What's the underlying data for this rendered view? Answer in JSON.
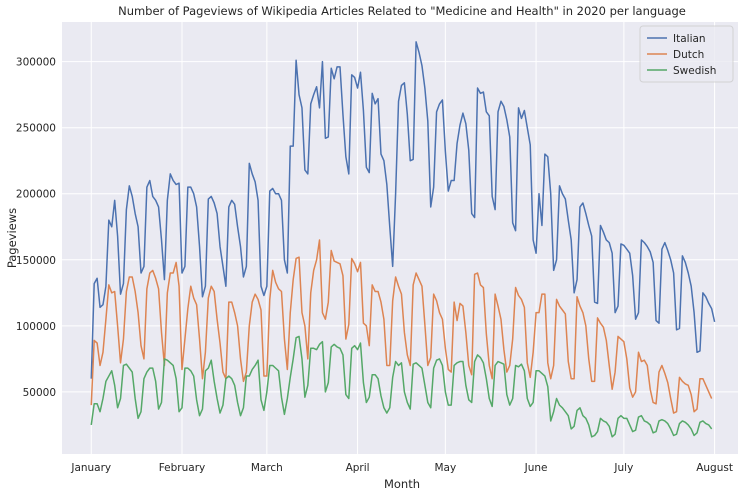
{
  "chart_data": {
    "type": "line",
    "title": "Number of Pageviews of Wikipedia Articles Related to \"Medicine and Health\" in 2020 per language",
    "xlabel": "Month",
    "ylabel": "Pageviews",
    "x_start": "2020-01-01",
    "x_end": "2020-07-31",
    "xlim": [
      "2019-12-22",
      "2020-08-09"
    ],
    "ylim": [
      3000,
      330000
    ],
    "x_ticks": [
      {
        "date": "2020-01-01",
        "label": "January"
      },
      {
        "date": "2020-02-01",
        "label": "February"
      },
      {
        "date": "2020-03-01",
        "label": "March"
      },
      {
        "date": "2020-04-01",
        "label": "April"
      },
      {
        "date": "2020-05-01",
        "label": "May"
      },
      {
        "date": "2020-06-01",
        "label": "June"
      },
      {
        "date": "2020-07-01",
        "label": "July"
      },
      {
        "date": "2020-08-01",
        "label": "August"
      }
    ],
    "y_ticks": [
      {
        "value": 50000,
        "label": "50000"
      },
      {
        "value": 100000,
        "label": "100000"
      },
      {
        "value": 150000,
        "label": "150000"
      },
      {
        "value": 200000,
        "label": "200000"
      },
      {
        "value": 250000,
        "label": "250000"
      },
      {
        "value": 300000,
        "label": "300000"
      }
    ],
    "grid": true,
    "legend_position": "top-right",
    "background_color": "#eaeaf2",
    "grid_color": "#ffffff",
    "series": [
      {
        "name": "Italian",
        "color": "#4c72b0",
        "values": [
          60000,
          132000,
          136000,
          114000,
          116000,
          130000,
          180000,
          175000,
          195000,
          168000,
          124000,
          132000,
          188000,
          206000,
          198000,
          185000,
          175000,
          140000,
          145000,
          205000,
          210000,
          198000,
          195000,
          190000,
          165000,
          135000,
          195000,
          215000,
          210000,
          207000,
          208000,
          140000,
          145000,
          205000,
          205000,
          200000,
          190000,
          160000,
          122000,
          130000,
          196000,
          198000,
          193000,
          185000,
          160000,
          145000,
          130000,
          190000,
          195000,
          192000,
          175000,
          160000,
          137000,
          145000,
          223000,
          215000,
          209000,
          195000,
          130000,
          123000,
          130000,
          202000,
          204000,
          200000,
          200000,
          195000,
          150000,
          140000,
          236000,
          236000,
          301000,
          275000,
          265000,
          218000,
          215000,
          268000,
          275000,
          281000,
          265000,
          300000,
          242000,
          243000,
          295000,
          287000,
          296000,
          296000,
          260000,
          228000,
          215000,
          290000,
          288000,
          280000,
          292000,
          263000,
          220000,
          216000,
          276000,
          268000,
          272000,
          230000,
          225000,
          207000,
          175000,
          145000,
          200000,
          270000,
          282000,
          284000,
          260000,
          225000,
          226000,
          315000,
          307000,
          297000,
          280000,
          255000,
          190000,
          205000,
          262000,
          268000,
          271000,
          232000,
          202000,
          210000,
          210000,
          238000,
          252000,
          261000,
          253000,
          233000,
          185000,
          182000,
          280000,
          276000,
          277000,
          262000,
          259000,
          198000,
          188000,
          262000,
          270000,
          266000,
          256000,
          243000,
          178000,
          172000,
          265000,
          257000,
          263000,
          250000,
          237000,
          165000,
          155000,
          200000,
          176000,
          230000,
          228000,
          200000,
          142000,
          150000,
          206000,
          200000,
          196000,
          180000,
          165000,
          125000,
          135000,
          190000,
          193000,
          185000,
          176000,
          168000,
          118000,
          117000,
          176000,
          171000,
          165000,
          163000,
          155000,
          110000,
          115000,
          162000,
          161000,
          158000,
          155000,
          138000,
          105000,
          110000,
          165000,
          163000,
          160000,
          156000,
          148000,
          104000,
          102000,
          158000,
          163000,
          157000,
          150000,
          140000,
          97000,
          98000,
          153000,
          148000,
          140000,
          130000,
          110000,
          80000,
          81000,
          125000,
          122000,
          117000,
          113000,
          103000
        ]
      },
      {
        "name": "Dutch",
        "color": "#dd8452",
        "values": [
          40000,
          89000,
          87000,
          70000,
          80000,
          105000,
          131000,
          125000,
          126000,
          100000,
          72000,
          90000,
          126000,
          137000,
          137000,
          126000,
          110000,
          85000,
          75000,
          128000,
          140000,
          142000,
          136000,
          128000,
          95000,
          70000,
          125000,
          140000,
          140000,
          148000,
          130000,
          67000,
          90000,
          113000,
          130000,
          121000,
          116000,
          90000,
          60000,
          80000,
          121000,
          130000,
          126000,
          105000,
          87000,
          65000,
          60000,
          118000,
          118000,
          110000,
          100000,
          75000,
          58000,
          65000,
          100000,
          118000,
          124000,
          120000,
          112000,
          62000,
          62000,
          120000,
          142000,
          133000,
          128000,
          126000,
          90000,
          67000,
          110000,
          135000,
          151000,
          152000,
          110000,
          100000,
          75000,
          125000,
          142000,
          150000,
          165000,
          110000,
          105000,
          118000,
          157000,
          149000,
          148000,
          147000,
          138000,
          90000,
          101000,
          151000,
          147000,
          141000,
          148000,
          102000,
          100000,
          85000,
          131000,
          126000,
          126000,
          118000,
          105000,
          70000,
          70000,
          119000,
          137000,
          130000,
          124000,
          95000,
          78000,
          70000,
          131000,
          140000,
          135000,
          130000,
          101000,
          70000,
          76000,
          124000,
          119000,
          110000,
          105000,
          83000,
          67000,
          65000,
          118000,
          104000,
          117000,
          115000,
          95000,
          70000,
          63000,
          139000,
          140000,
          131000,
          129000,
          94000,
          70000,
          60000,
          124000,
          115000,
          105000,
          82000,
          65000,
          70000,
          90000,
          129000,
          123000,
          120000,
          114000,
          72000,
          61000,
          80000,
          110000,
          110000,
          124000,
          124000,
          72000,
          60000,
          70000,
          120000,
          115000,
          112000,
          109000,
          73000,
          60000,
          60000,
          122000,
          115000,
          110000,
          100000,
          75000,
          58000,
          58000,
          106000,
          102000,
          99000,
          89000,
          70000,
          52000,
          65000,
          92000,
          90000,
          88000,
          75000,
          53000,
          46000,
          50000,
          80000,
          73000,
          74000,
          70000,
          52000,
          42000,
          41000,
          65000,
          70000,
          64000,
          57000,
          45000,
          34000,
          35000,
          61000,
          58000,
          56000,
          55000,
          48000,
          35000,
          37000,
          60000,
          60000,
          55000,
          50000,
          45000
        ]
      },
      {
        "name": "Swedish",
        "color": "#55a868",
        "values": [
          25000,
          41000,
          41000,
          35000,
          45000,
          58000,
          62000,
          66000,
          55000,
          38000,
          45000,
          70000,
          71000,
          68000,
          65000,
          45000,
          30000,
          35000,
          60000,
          65000,
          68000,
          68000,
          58000,
          37000,
          42000,
          75000,
          74000,
          72000,
          70000,
          60000,
          35000,
          38000,
          68000,
          68000,
          66000,
          62000,
          44000,
          32000,
          37000,
          66000,
          68000,
          74000,
          58000,
          45000,
          34000,
          40000,
          60000,
          62000,
          60000,
          55000,
          42000,
          32000,
          38000,
          62000,
          62000,
          67000,
          70000,
          74000,
          44000,
          36000,
          50000,
          70000,
          70000,
          68000,
          66000,
          46000,
          33000,
          45000,
          61000,
          75000,
          91000,
          92000,
          75000,
          46000,
          55000,
          83000,
          83000,
          82000,
          86000,
          88000,
          50000,
          57000,
          84000,
          86000,
          84000,
          83000,
          78000,
          48000,
          45000,
          83000,
          85000,
          82000,
          87000,
          57000,
          42000,
          46000,
          63000,
          63000,
          60000,
          47000,
          38000,
          34000,
          38000,
          61000,
          73000,
          70000,
          72000,
          50000,
          42000,
          37000,
          71000,
          72000,
          70000,
          68000,
          55000,
          42000,
          38000,
          68000,
          74000,
          75000,
          70000,
          50000,
          40000,
          40000,
          70000,
          72000,
          73000,
          73000,
          55000,
          44000,
          42000,
          73000,
          78000,
          76000,
          72000,
          60000,
          45000,
          39000,
          70000,
          73000,
          72000,
          71000,
          48000,
          40000,
          45000,
          70000,
          69000,
          71000,
          66000,
          45000,
          39000,
          42000,
          66000,
          66000,
          64000,
          62000,
          54000,
          28000,
          35000,
          45000,
          40000,
          38000,
          35000,
          32000,
          22000,
          24000,
          36000,
          38000,
          32000,
          30000,
          25000,
          16000,
          17000,
          20000,
          30000,
          28000,
          27000,
          24000,
          16000,
          18000,
          30000,
          32000,
          30000,
          30000,
          25000,
          20000,
          21000,
          31000,
          32000,
          28000,
          27000,
          25000,
          19000,
          20000,
          28000,
          29000,
          28000,
          26000,
          22000,
          17000,
          18000,
          26000,
          28000,
          27000,
          25000,
          22000,
          17000,
          19000,
          27000,
          28000,
          26000,
          25000,
          22000
        ]
      }
    ]
  }
}
